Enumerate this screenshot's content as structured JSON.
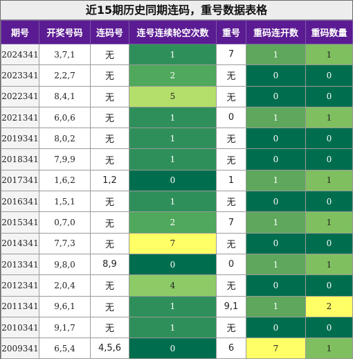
{
  "title": "近15期历史同期连码，重号数据表格",
  "headers": [
    "期号",
    "开奖号码",
    "连码号",
    "连号连续轮空次数",
    "重号",
    "重码连开数",
    "重码数量"
  ],
  "rows": [
    {
      "issue": "2024341",
      "nums": "3,7,1",
      "lian": "无",
      "gap": "1",
      "chong": "7",
      "cklk": "1",
      "ccount": "1"
    },
    {
      "issue": "2023341",
      "nums": "2,2,7",
      "lian": "无",
      "gap": "2",
      "chong": "无",
      "cklk": "0",
      "ccount": "0"
    },
    {
      "issue": "2022341",
      "nums": "8,4,1",
      "lian": "无",
      "gap": "5",
      "chong": "无",
      "cklk": "0",
      "ccount": "0"
    },
    {
      "issue": "2021341",
      "nums": "6,0,6",
      "lian": "无",
      "gap": "1",
      "chong": "0",
      "cklk": "1",
      "ccount": "1"
    },
    {
      "issue": "2019341",
      "nums": "8,0,2",
      "lian": "无",
      "gap": "1",
      "chong": "无",
      "cklk": "0",
      "ccount": "0"
    },
    {
      "issue": "2018341",
      "nums": "7,9,9",
      "lian": "无",
      "gap": "1",
      "chong": "无",
      "cklk": "0",
      "ccount": "0"
    },
    {
      "issue": "2017341",
      "nums": "1,6,2",
      "lian": "1,2",
      "gap": "0",
      "chong": "1",
      "cklk": "1",
      "ccount": "1"
    },
    {
      "issue": "2016341",
      "nums": "1,5,1",
      "lian": "无",
      "gap": "1",
      "chong": "无",
      "cklk": "0",
      "ccount": "0"
    },
    {
      "issue": "2015341",
      "nums": "0,7,0",
      "lian": "无",
      "gap": "2",
      "chong": "7",
      "cklk": "1",
      "ccount": "1"
    },
    {
      "issue": "2014341",
      "nums": "7,7,3",
      "lian": "无",
      "gap": "7",
      "chong": "无",
      "cklk": "0",
      "ccount": "0"
    },
    {
      "issue": "2013341",
      "nums": "9,8,0",
      "lian": "8,9",
      "gap": "0",
      "chong": "0",
      "cklk": "1",
      "ccount": "1"
    },
    {
      "issue": "2012341",
      "nums": "2,0,4",
      "lian": "无",
      "gap": "4",
      "chong": "无",
      "cklk": "0",
      "ccount": "0"
    },
    {
      "issue": "2011341",
      "nums": "9,6,1",
      "lian": "无",
      "gap": "1",
      "chong": "9,1",
      "cklk": "1",
      "ccount": "2"
    },
    {
      "issue": "2010341",
      "nums": "9,1,7",
      "lian": "无",
      "gap": "1",
      "chong": "无",
      "cklk": "0",
      "ccount": "0"
    },
    {
      "issue": "2009341",
      "nums": "6,5,4",
      "lian": "4,5,6",
      "gap": "0",
      "chong": "6",
      "cklk": "7",
      "ccount": "1"
    }
  ],
  "colors": {
    "header_bg": "#5b1b93",
    "dark_green": "#006e4e",
    "mid_green": "#2f8f5a",
    "light_green": "#8ccb66",
    "lime": "#b5df6b",
    "yellow": "#ffff66"
  }
}
